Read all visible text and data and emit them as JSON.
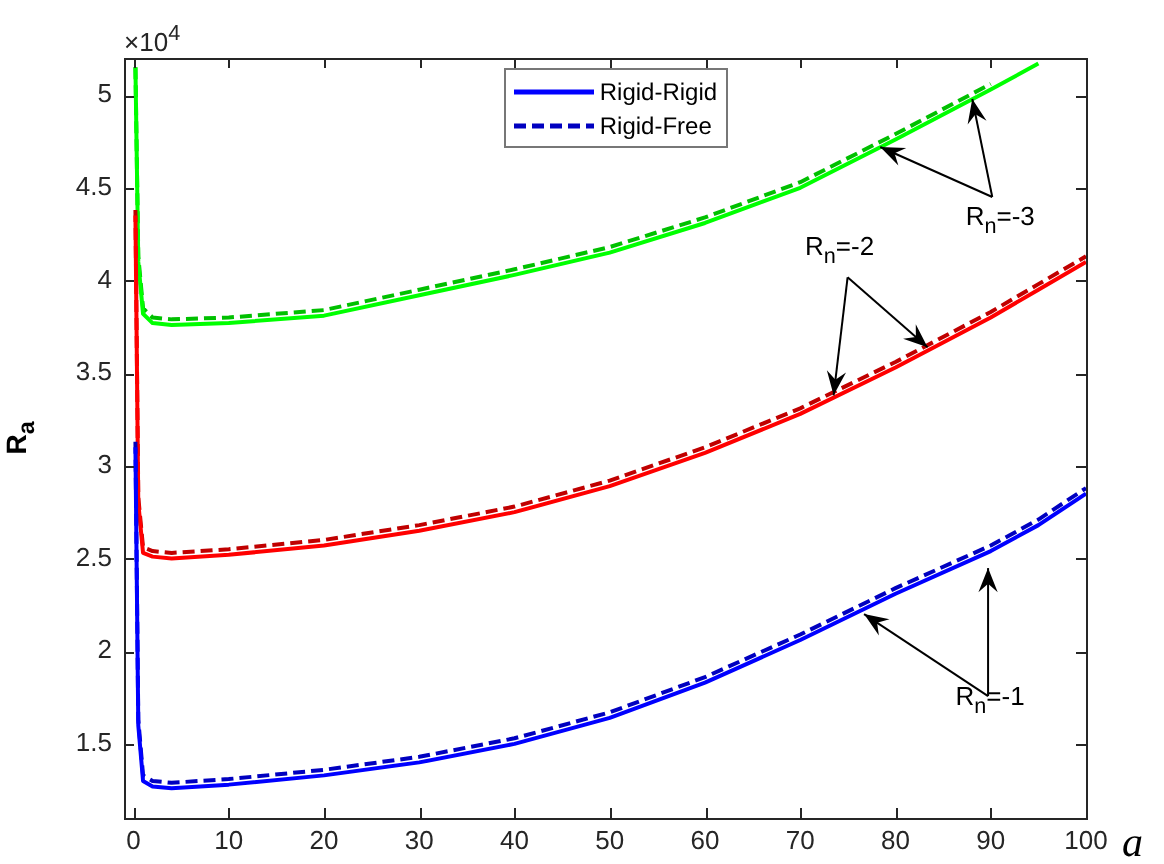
{
  "chart_data": {
    "type": "line",
    "xlabel": "a",
    "ylabel": "R$_{a}$",
    "x": [
      0.2,
      0.5,
      1,
      2,
      4,
      10,
      20,
      30,
      40,
      50,
      60,
      70,
      80,
      90,
      95,
      100
    ],
    "series": [
      {
        "name": "Rigid-Rigid",
        "color": "#0000ff",
        "line_style": "solid",
        "values": [
          3.1,
          1.6,
          1.3,
          1.27,
          1.26,
          1.28,
          1.33,
          1.4,
          1.5,
          1.64,
          1.83,
          2.06,
          2.31,
          2.54,
          2.68,
          2.85
        ]
      },
      {
        "name": "Rigid-Free",
        "color": "#0000c0",
        "line_style": "dashed",
        "values": [
          3.13,
          1.63,
          1.33,
          1.3,
          1.29,
          1.31,
          1.36,
          1.43,
          1.53,
          1.67,
          1.86,
          2.09,
          2.34,
          2.57,
          2.71,
          2.88
        ]
      },
      {
        "color": "#ff0000",
        "line_style": "solid",
        "values": [
          4.35,
          2.8,
          2.53,
          2.51,
          2.5,
          2.52,
          2.57,
          2.65,
          2.75,
          2.89,
          3.07,
          3.28,
          3.53,
          3.8,
          3.95,
          4.1
        ]
      },
      {
        "color": "#c00000",
        "line_style": "dashed",
        "values": [
          4.38,
          2.83,
          2.56,
          2.54,
          2.53,
          2.55,
          2.6,
          2.68,
          2.78,
          2.92,
          3.1,
          3.31,
          3.56,
          3.83,
          3.98,
          4.13
        ]
      },
      {
        "color": "#00ff00",
        "line_style": "solid",
        "values": [
          5.15,
          4.1,
          3.82,
          3.77,
          3.76,
          3.77,
          3.81,
          3.92,
          4.03,
          4.15,
          4.31,
          4.5,
          4.76,
          5.03,
          5.17,
          null
        ]
      },
      {
        "color": "#00c000",
        "line_style": "dashed",
        "values": [
          5.15,
          4.13,
          3.85,
          3.8,
          3.79,
          3.8,
          3.84,
          3.95,
          4.06,
          4.18,
          4.34,
          4.53,
          4.79,
          5.06,
          null,
          null
        ]
      }
    ],
    "xlim": [
      -1,
      100
    ],
    "xticks": [
      0,
      10,
      20,
      30,
      40,
      50,
      60,
      70,
      80,
      90,
      100
    ],
    "ylim": [
      1.1,
      5.2
    ],
    "yticks": [
      1.5,
      2,
      2.5,
      3,
      3.5,
      4,
      4.5,
      5
    ],
    "annotations": [
      "×10$^{4}$",
      {
        "text": "R$_{n}$=-3",
        "x": 78.4,
        "y": 4.72
      },
      {
        "text": "R$_{n}$=-2",
        "x": 73.5,
        "y": 3.38
      },
      {
        "text": "R$_{n}$=-1",
        "x": 76.7,
        "y": 2.2
      }
    ],
    "grid": false,
    "legend": "top",
    "marker": "none"
  }
}
